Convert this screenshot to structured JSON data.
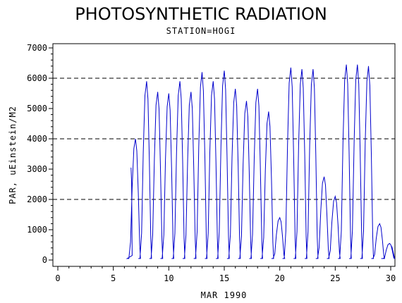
{
  "chart_data": {
    "type": "line",
    "title": "PHOTOSYNTHETIC RADIATION",
    "subtitle": "STATION=HOGI",
    "xlabel": "MAR 1990",
    "ylabel": "PAR, uEinstein/M2",
    "xlim": [
      0,
      30
    ],
    "ylim": [
      0,
      7000
    ],
    "x_ticks": [
      "0",
      "5",
      "10",
      "15",
      "20",
      "25",
      "30"
    ],
    "y_ticks": [
      "0",
      "1000",
      "2000",
      "3000",
      "4000",
      "5000",
      "6000",
      "7000"
    ],
    "reference_lines": [
      2000,
      4000,
      6000
    ],
    "line_color": "#0000cc",
    "grid": false,
    "series": [
      {
        "daily_peaks": [
          {
            "day": 7,
            "peak": 4000
          },
          {
            "day": 8,
            "peak": 5900
          },
          {
            "day": 9,
            "peak": 5550
          },
          {
            "day": 10,
            "peak": 5500
          },
          {
            "day": 11,
            "peak": 5900
          },
          {
            "day": 12,
            "peak": 5550
          },
          {
            "day": 13,
            "peak": 6200
          },
          {
            "day": 14,
            "peak": 5900
          },
          {
            "day": 15,
            "peak": 6250
          },
          {
            "day": 16,
            "peak": 5650
          },
          {
            "day": 17,
            "peak": 5250
          },
          {
            "day": 18,
            "peak": 5650
          },
          {
            "day": 19,
            "peak": 4900
          },
          {
            "day": 20,
            "peak": 1400
          },
          {
            "day": 21,
            "peak": 6350
          },
          {
            "day": 22,
            "peak": 6300
          },
          {
            "day": 23,
            "peak": 6300
          },
          {
            "day": 24,
            "peak": 2750
          },
          {
            "day": 25,
            "peak": 2100
          },
          {
            "day": 26,
            "peak": 6450
          },
          {
            "day": 27,
            "peak": 6450
          },
          {
            "day": 28,
            "peak": 6400
          },
          {
            "day": 29,
            "peak": 1200
          },
          {
            "day": 29.9,
            "peak": 550
          }
        ],
        "start": {
          "x": 6.6,
          "y": 3050
        },
        "end": {
          "x": 30.1,
          "y": 450
        },
        "night_value": 50
      }
    ]
  }
}
